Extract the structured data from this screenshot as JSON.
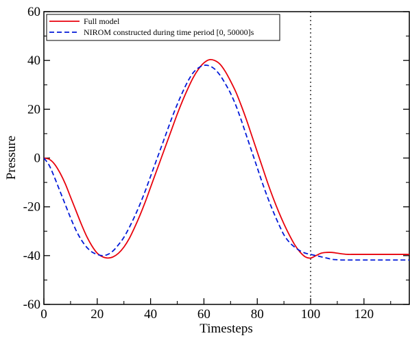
{
  "chart_data": {
    "type": "line",
    "title": "",
    "xlabel": "Timesteps",
    "ylabel": "Pressure",
    "xlim": [
      0,
      137
    ],
    "ylim": [
      -60,
      60
    ],
    "xticks": [
      0,
      20,
      40,
      60,
      80,
      100,
      120
    ],
    "yticks": [
      -60,
      -40,
      -20,
      0,
      20,
      40,
      60
    ],
    "grid": false,
    "legend_position": "top-left",
    "vline_x": 100,
    "series": [
      {
        "name": "Full model",
        "color": "#e8000b",
        "dash": "solid",
        "x": [
          0,
          2,
          4,
          6,
          8,
          10,
          12,
          14,
          16,
          18,
          20,
          22,
          24,
          26,
          28,
          30,
          32,
          34,
          36,
          38,
          40,
          42,
          44,
          46,
          48,
          50,
          52,
          54,
          56,
          58,
          60,
          62,
          64,
          66,
          68,
          70,
          72,
          74,
          76,
          78,
          80,
          82,
          84,
          86,
          88,
          90,
          92,
          94,
          96,
          98,
          100,
          102,
          104,
          106,
          108,
          110,
          112,
          114,
          116,
          118,
          120,
          122,
          124,
          126,
          128,
          130,
          132,
          134,
          137
        ],
        "y": [
          0,
          -0.5,
          -2.5,
          -6,
          -10.5,
          -16,
          -21.5,
          -27,
          -32,
          -36,
          -39,
          -40.5,
          -41,
          -40.5,
          -39,
          -36.5,
          -33,
          -28.5,
          -23.5,
          -18,
          -12,
          -6,
          0,
          6,
          12,
          18,
          23.5,
          28.5,
          33,
          36.5,
          39,
          40.3,
          40,
          38.5,
          35.5,
          31.5,
          27,
          21.5,
          15.5,
          9,
          2.5,
          -4,
          -10.5,
          -16.5,
          -22,
          -27,
          -31.5,
          -35.5,
          -38.5,
          -40.5,
          -41,
          -40,
          -39,
          -38.7,
          -38.7,
          -39,
          -39.3,
          -39.5,
          -39.5,
          -39.5,
          -39.5,
          -39.5,
          -39.5,
          -39.5,
          -39.5,
          -39.5,
          -39.5,
          -39.5,
          -39.5
        ]
      },
      {
        "name": "NIROM constructed during time period [0, 50000]s",
        "color": "#0018d8",
        "dash": "dashed",
        "x": [
          0,
          2,
          4,
          6,
          8,
          10,
          12,
          14,
          16,
          18,
          20,
          22,
          24,
          26,
          28,
          30,
          32,
          34,
          36,
          38,
          40,
          42,
          44,
          46,
          48,
          50,
          52,
          54,
          56,
          58,
          60,
          62,
          64,
          66,
          68,
          70,
          72,
          74,
          76,
          78,
          80,
          82,
          84,
          86,
          88,
          90,
          92,
          94,
          96,
          98,
          100,
          102,
          104,
          106,
          108,
          110,
          112,
          114,
          116,
          118,
          120,
          122,
          124,
          126,
          128,
          130,
          132,
          134,
          137
        ],
        "y": [
          0,
          -3,
          -8,
          -13.5,
          -19,
          -24.5,
          -29.5,
          -33.5,
          -36.5,
          -38.5,
          -39.5,
          -40,
          -39.5,
          -38,
          -35.5,
          -32.5,
          -28.5,
          -24,
          -19,
          -13.5,
          -7.5,
          -1.5,
          4.5,
          10.5,
          16.5,
          22,
          27,
          31.5,
          35,
          37,
          38,
          37.8,
          36.5,
          34,
          30.5,
          26.5,
          21.5,
          15.5,
          9,
          2.5,
          -4,
          -10.5,
          -16.5,
          -22,
          -27,
          -31.5,
          -34.5,
          -36.5,
          -38,
          -39,
          -39.5,
          -40,
          -40.5,
          -41,
          -41.5,
          -41.7,
          -41.8,
          -41.8,
          -41.8,
          -41.8,
          -41.8,
          -41.8,
          -41.8,
          -41.8,
          -41.8,
          -41.8,
          -41.8,
          -41.8,
          -41.8
        ]
      }
    ]
  }
}
